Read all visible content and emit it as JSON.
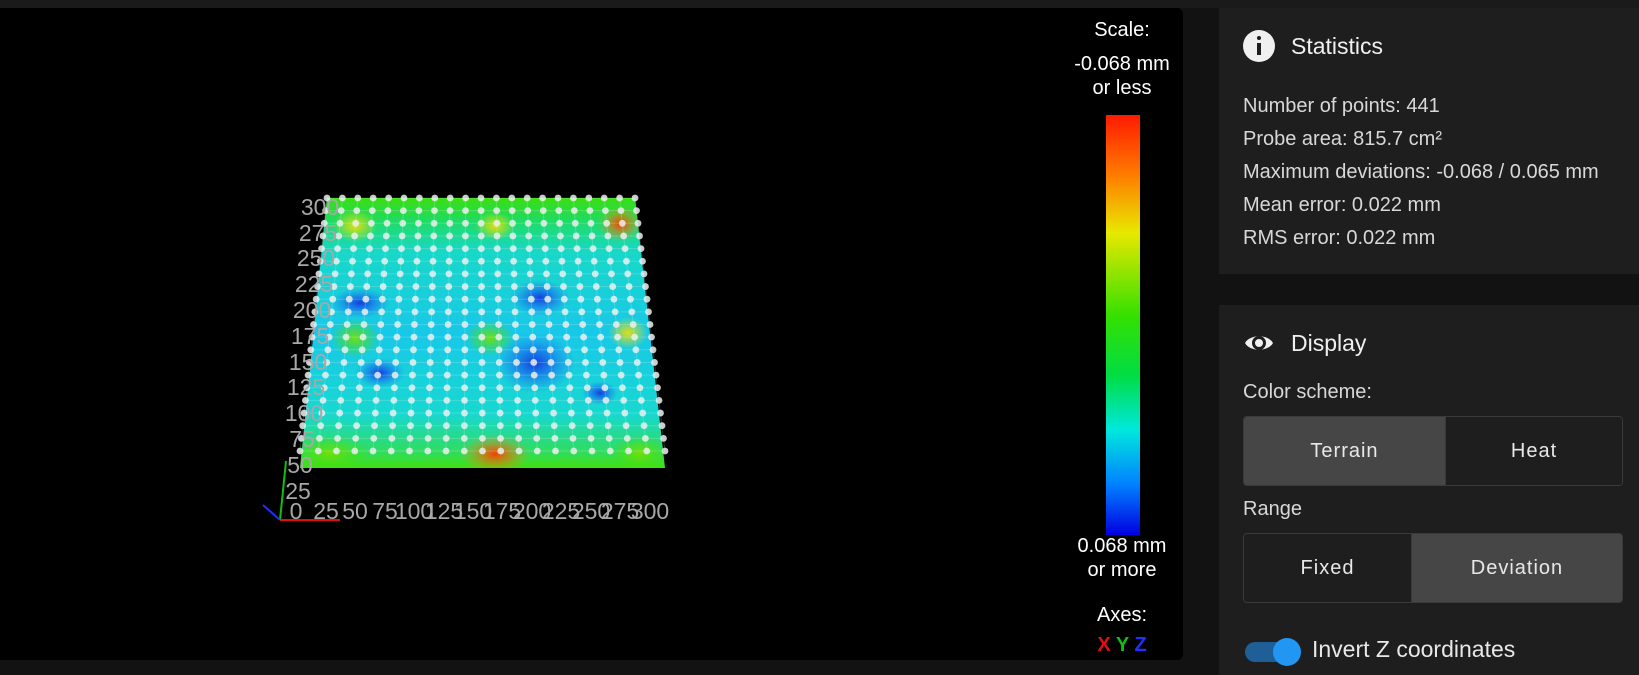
{
  "viewer": {
    "y_ticks": [
      "300",
      "275",
      "250",
      "225",
      "200",
      "175",
      "150",
      "125",
      "100",
      "75",
      "50",
      "25"
    ],
    "x_ticks": [
      "0",
      "25",
      "50",
      "75",
      "100",
      "125",
      "150",
      "175",
      "200",
      "225",
      "250",
      "275",
      "300"
    ]
  },
  "scale": {
    "title": "Scale:",
    "top_value": "-0.068 mm",
    "top_suffix": "or less",
    "bottom_value": "0.068 mm",
    "bottom_suffix": "or more",
    "gradient_colors": [
      "#ff1a00",
      "#ff7a00",
      "#e8e800",
      "#33e000",
      "#00dd44",
      "#00e8dd",
      "#0080ff",
      "#0000e0"
    ]
  },
  "axes_legend": {
    "title": "Axes:",
    "x": "X",
    "y": "Y",
    "z": "Z",
    "x_color": "#e01010",
    "y_color": "#10c010",
    "z_color": "#2030ff"
  },
  "statistics": {
    "icon": "info-icon",
    "title": "Statistics",
    "number_of_points": "Number of points: 441",
    "probe_area": "Probe area: 815.7 cm²",
    "max_deviations": "Maximum deviations: -0.068 / 0.065 mm",
    "mean_error": "Mean error: 0.022 mm",
    "rms_error": "RMS error: 0.022 mm"
  },
  "display": {
    "icon": "eye-icon",
    "title": "Display",
    "color_scheme_label": "Color scheme:",
    "color_scheme_options": [
      "Terrain",
      "Heat"
    ],
    "color_scheme_selected": "Terrain",
    "range_label": "Range",
    "range_options": [
      "Fixed",
      "Deviation"
    ],
    "range_selected": "Deviation",
    "invert_z_label": "Invert Z coordinates",
    "invert_z_on": true,
    "accent_color": "#2196f3"
  }
}
